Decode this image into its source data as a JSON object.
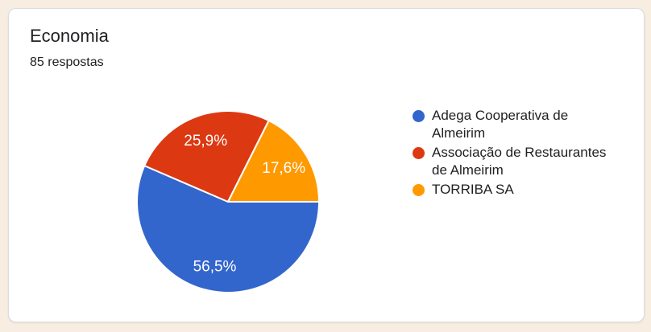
{
  "page": {
    "background_color": "#F7EEE1"
  },
  "card": {
    "background_color": "#FFFFFF",
    "border_color": "#DADCE0"
  },
  "chart_data": {
    "type": "pie",
    "title": "Economia",
    "subtitle": "85 respostas",
    "total_responses": 85,
    "start_angle_deg": 0,
    "direction": "clockwise",
    "legend_position": "right",
    "slice_label_color": "#FFFFFF",
    "slices": [
      {
        "label": "Adega Cooperativa de Almeirim",
        "percent": 56.5,
        "percent_display": "56,5%",
        "color": "#3366CC"
      },
      {
        "label": "Associação de Restaurantes de Almeirim",
        "percent": 25.9,
        "percent_display": "25,9%",
        "color": "#DC3912"
      },
      {
        "label": "TORRIBA SA",
        "percent": 17.6,
        "percent_display": "17,6%",
        "color": "#FF9900"
      }
    ]
  }
}
